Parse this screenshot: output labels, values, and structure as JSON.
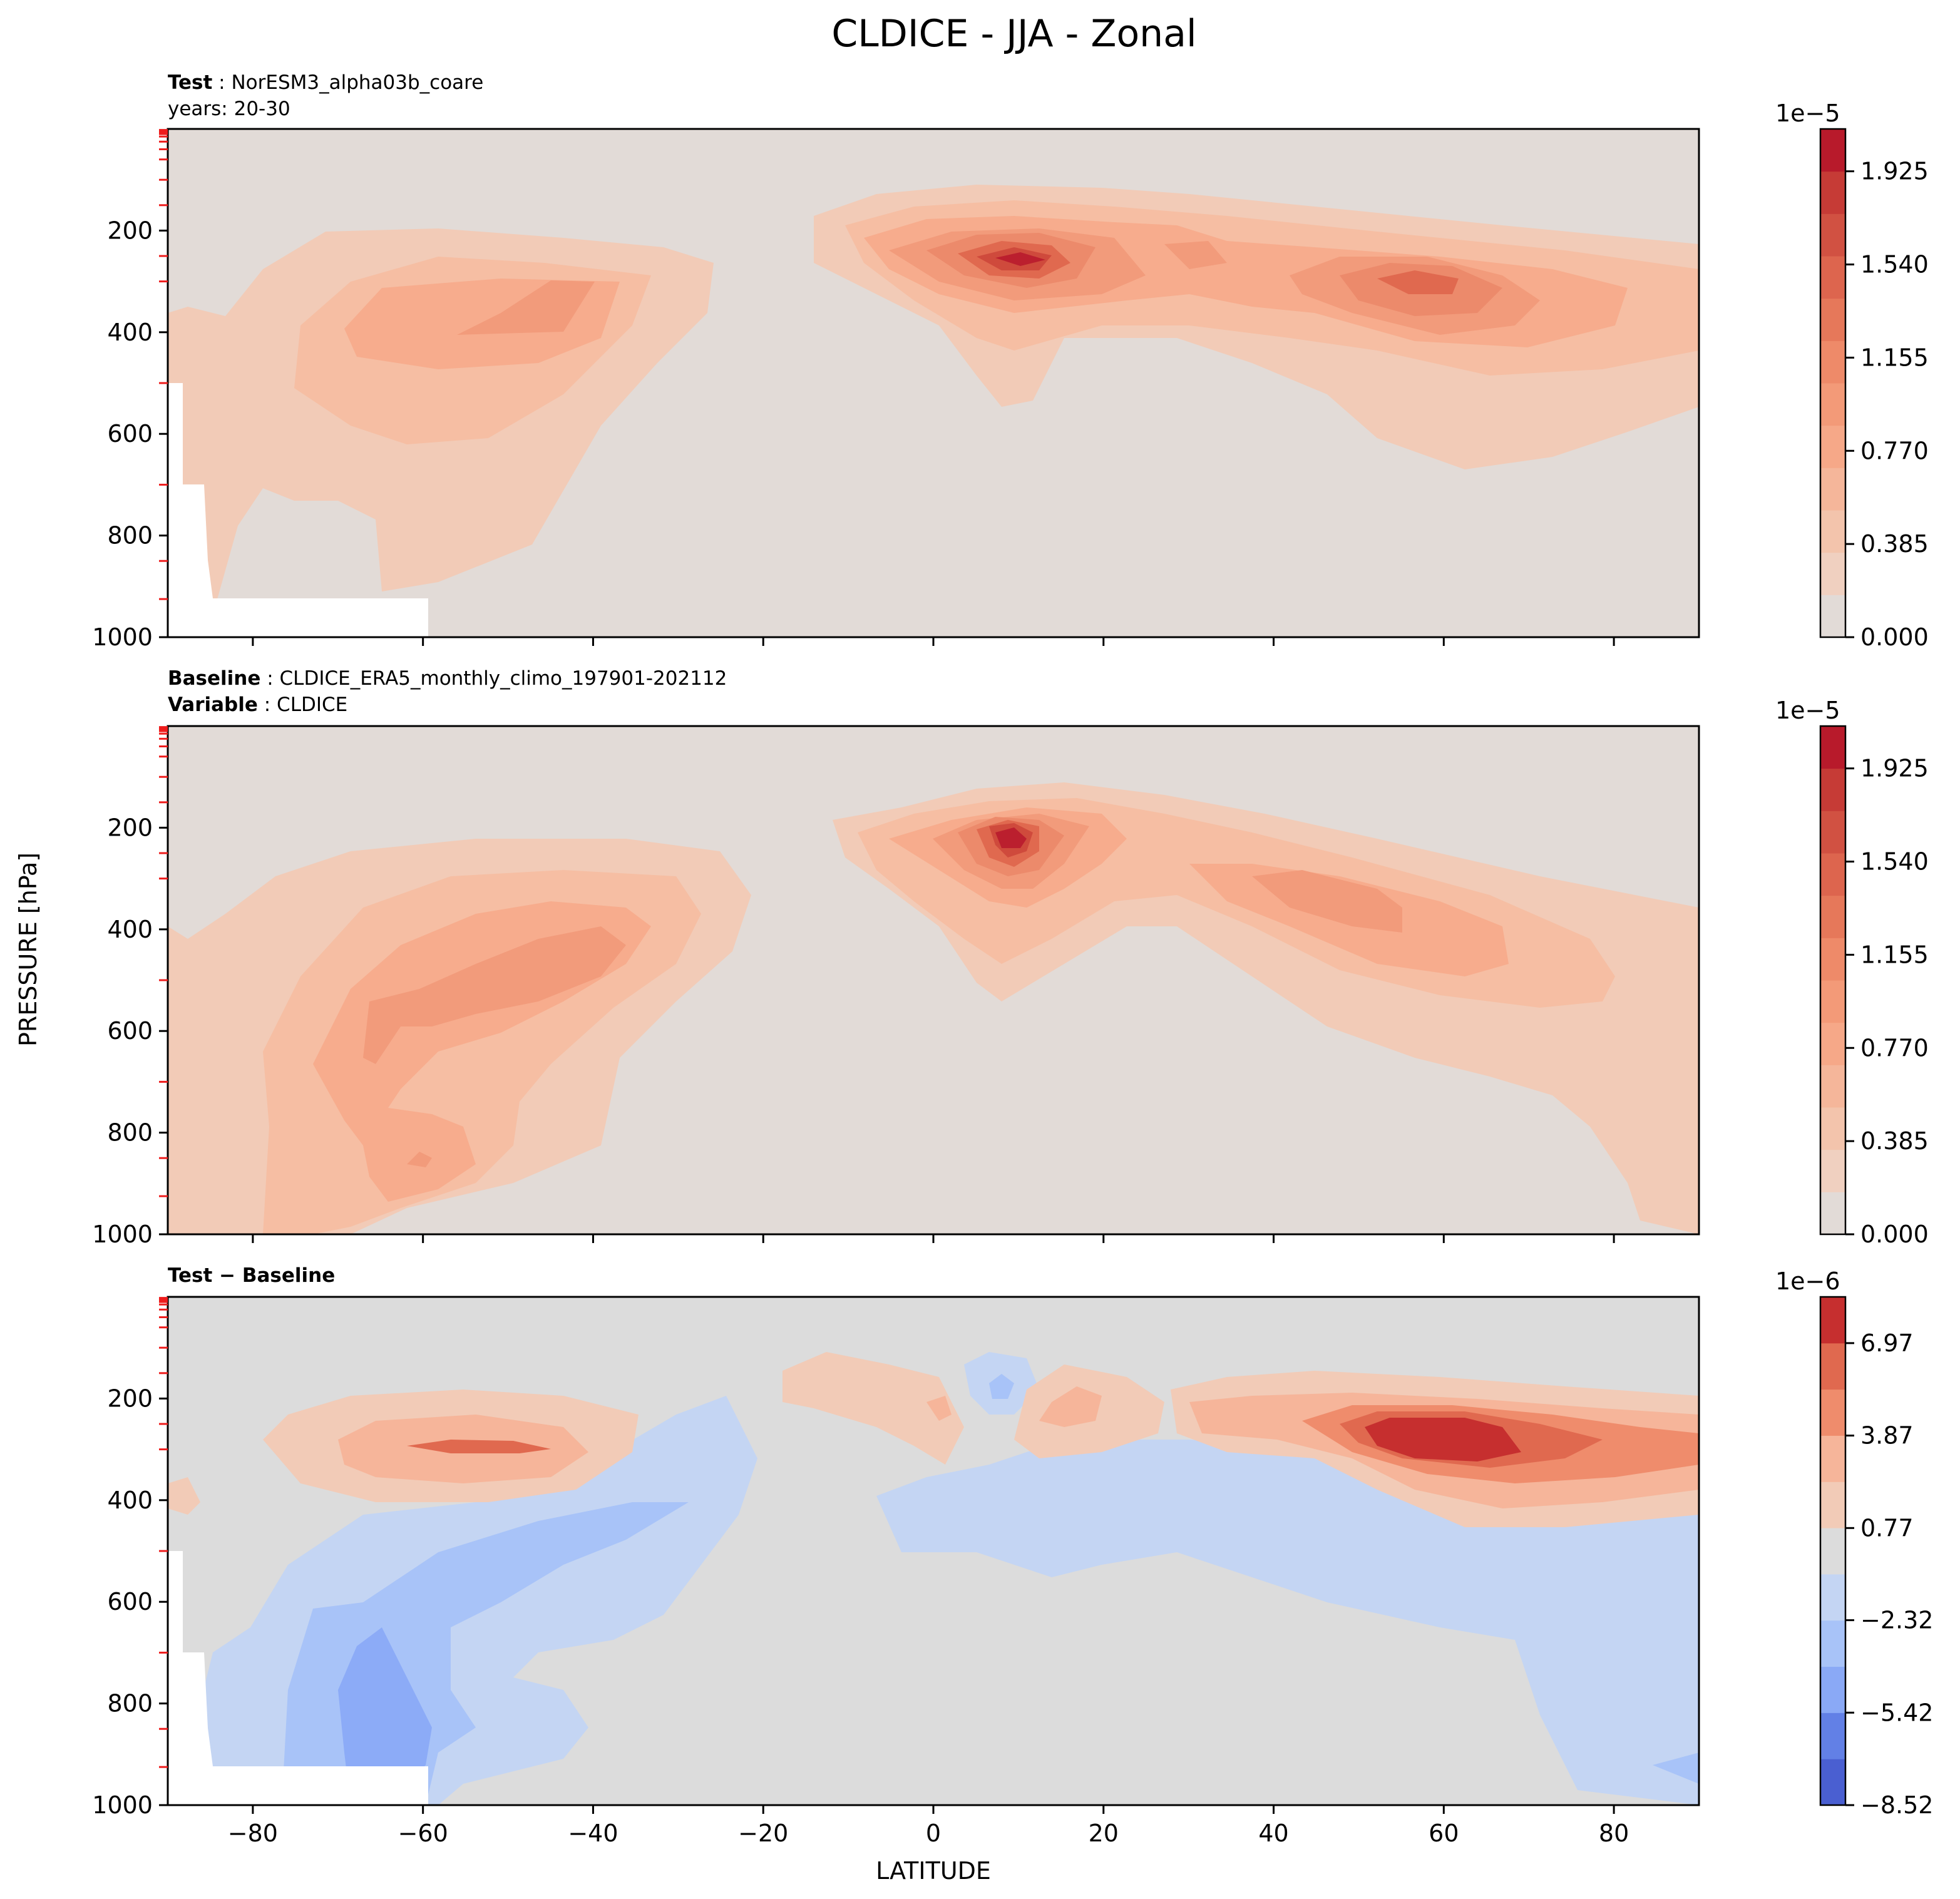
{
  "chart_data": {
    "type": "contour",
    "title": "CLDICE - JJA - Zonal",
    "xlabel": "LATITUDE",
    "ylabel": "PRESSURE [hPa]",
    "xlim": [
      -90,
      90
    ],
    "ylim": [
      1000,
      0
    ],
    "x_ticks": [
      -80,
      -60,
      -40,
      -20,
      0,
      20,
      40,
      60,
      80
    ],
    "x_tick_labels": [
      "−80",
      "−60",
      "−40",
      "−20",
      "0",
      "20",
      "40",
      "60",
      "80"
    ],
    "y_ticks": [
      200,
      400,
      600,
      800,
      1000
    ],
    "y_tick_labels": [
      "200",
      "400",
      "600",
      "800",
      "1000"
    ],
    "panels": [
      {
        "id": "test",
        "header_lines": [
          {
            "bold": "Test",
            "sep": " : ",
            "text": "NorESM3_alpha03b_coare"
          },
          {
            "bold": "",
            "sep": "",
            "text": "years: 20-30"
          }
        ],
        "colorbar": {
          "offset_label": "1e−5",
          "tick_values": [
            0,
            0.385,
            0.77,
            1.155,
            1.54,
            1.925
          ],
          "tick_labels": [
            "0.000",
            "0.385",
            "0.770",
            "1.155",
            "1.540",
            "1.925"
          ],
          "range": [
            0,
            2.1
          ]
        },
        "features": [
          {
            "name": "upper-tropical-max",
            "lat": 9,
            "p": 250,
            "value": 2.0
          },
          {
            "name": "nh-midlat-max",
            "lat": 55,
            "p": 300,
            "value": 1.5
          },
          {
            "name": "sh-midlat-max",
            "lat": -52,
            "p": 330,
            "value": 1.0
          }
        ]
      },
      {
        "id": "baseline",
        "header_lines": [
          {
            "bold": "Baseline",
            "sep": " : ",
            "text": "CLDICE_ERA5_monthly_climo_197901-202112"
          },
          {
            "bold": "Variable",
            "sep": " : ",
            "text": "CLDICE"
          }
        ],
        "colorbar": {
          "offset_label": "1e−5",
          "tick_values": [
            0,
            0.385,
            0.77,
            1.155,
            1.54,
            1.925
          ],
          "tick_labels": [
            "0.000",
            "0.385",
            "0.770",
            "1.155",
            "1.540",
            "1.925"
          ],
          "range": [
            0,
            2.1
          ]
        },
        "features": [
          {
            "name": "upper-tropical-max",
            "lat": 9,
            "p": 240,
            "value": 2.0
          },
          {
            "name": "nh-midlat-max",
            "lat": 50,
            "p": 350,
            "value": 1.0
          },
          {
            "name": "sh-midlat-max",
            "lat": -55,
            "p": 550,
            "value": 1.2
          }
        ]
      },
      {
        "id": "diff",
        "header_lines": [
          {
            "bold": "Test − Baseline",
            "sep": "",
            "text": ""
          }
        ],
        "colorbar": {
          "offset_label": "1e−6",
          "tick_values": [
            -8.52,
            -5.42,
            -2.32,
            0.77,
            3.87,
            6.97
          ],
          "tick_labels": [
            "−8.52",
            "−5.42",
            "−2.32",
            "0.77",
            "3.87",
            "6.97"
          ],
          "range": [
            -8.52,
            8.52
          ]
        },
        "features": [
          {
            "name": "nh-positive-max",
            "lat": 58,
            "p": 300,
            "value": 8.0
          },
          {
            "name": "sh-positive-max",
            "lat": -50,
            "p": 300,
            "value": 5.0
          },
          {
            "name": "sh-negative-min",
            "lat": -65,
            "p": 780,
            "value": -6.0
          }
        ]
      }
    ]
  }
}
